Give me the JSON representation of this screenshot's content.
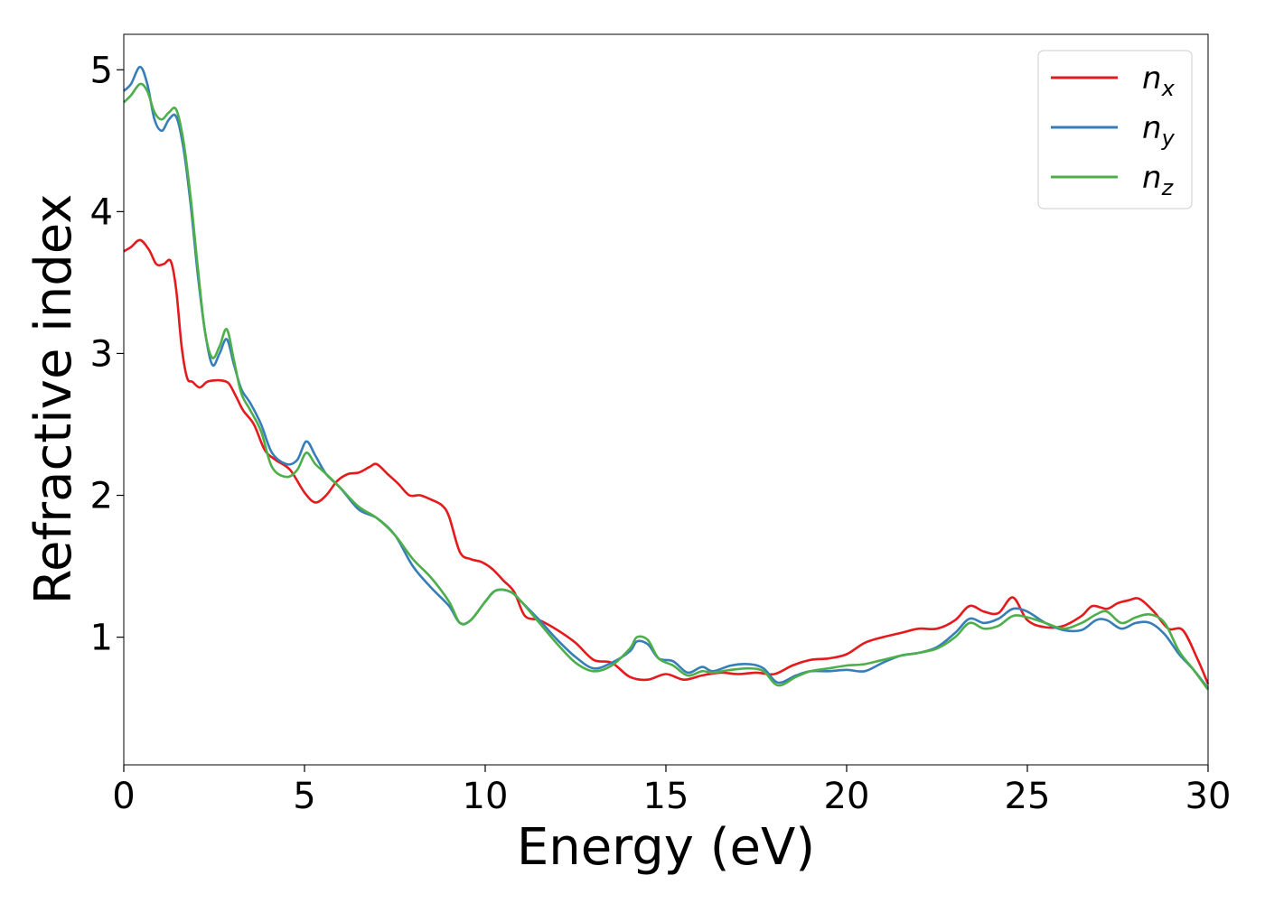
{
  "chart_data": {
    "type": "line",
    "xlabel": "Energy (eV)",
    "ylabel": "Refractive index",
    "xlim": [
      0,
      30
    ],
    "ylim": [
      0.1,
      5.25
    ],
    "xticks": [
      0,
      5,
      10,
      15,
      20,
      25,
      30
    ],
    "yticks": [
      1,
      2,
      3,
      4,
      5
    ],
    "grid": false,
    "legend": "top-right",
    "series": [
      {
        "name": "n",
        "subscript": "x",
        "color": "#e41a1c",
        "x": [
          0,
          0.2,
          0.45,
          0.7,
          0.9,
          1.1,
          1.3,
          1.45,
          1.6,
          1.75,
          1.9,
          2.1,
          2.3,
          2.5,
          2.7,
          2.9,
          3.1,
          3.3,
          3.6,
          3.9,
          4.2,
          4.6,
          5.0,
          5.3,
          5.6,
          5.9,
          6.2,
          6.5,
          6.8,
          7.0,
          7.3,
          7.6,
          7.9,
          8.2,
          8.5,
          8.8,
          9.0,
          9.3,
          9.6,
          9.9,
          10.2,
          10.5,
          10.8,
          11.1,
          11.5,
          12.0,
          12.5,
          13.0,
          13.5,
          14.0,
          14.5,
          15.0,
          15.5,
          16.0,
          16.5,
          17.0,
          17.5,
          18.0,
          18.5,
          19.0,
          19.5,
          20.0,
          20.5,
          21.0,
          21.5,
          22.0,
          22.5,
          23.0,
          23.4,
          23.8,
          24.2,
          24.6,
          25.0,
          25.5,
          26.0,
          26.5,
          26.8,
          27.2,
          27.5,
          27.8,
          28.1,
          28.5,
          28.9,
          29.3,
          29.7,
          30.0
        ],
        "y": [
          3.72,
          3.75,
          3.8,
          3.73,
          3.63,
          3.63,
          3.65,
          3.45,
          3.05,
          2.83,
          2.8,
          2.76,
          2.8,
          2.81,
          2.81,
          2.79,
          2.7,
          2.6,
          2.5,
          2.32,
          2.25,
          2.18,
          2.02,
          1.95,
          2.0,
          2.1,
          2.15,
          2.16,
          2.2,
          2.22,
          2.15,
          2.08,
          2.0,
          2.0,
          1.97,
          1.93,
          1.85,
          1.6,
          1.55,
          1.53,
          1.48,
          1.4,
          1.32,
          1.15,
          1.12,
          1.05,
          0.96,
          0.84,
          0.82,
          0.72,
          0.7,
          0.74,
          0.7,
          0.73,
          0.75,
          0.74,
          0.75,
          0.74,
          0.8,
          0.84,
          0.85,
          0.88,
          0.96,
          1.0,
          1.03,
          1.06,
          1.06,
          1.12,
          1.22,
          1.18,
          1.17,
          1.28,
          1.12,
          1.07,
          1.08,
          1.15,
          1.22,
          1.2,
          1.24,
          1.26,
          1.27,
          1.18,
          1.06,
          1.05,
          0.85,
          0.67
        ]
      },
      {
        "name": "n",
        "subscript": "y",
        "color": "#377eb8",
        "x": [
          0,
          0.2,
          0.45,
          0.65,
          0.85,
          1.05,
          1.25,
          1.45,
          1.65,
          1.85,
          2.05,
          2.25,
          2.45,
          2.65,
          2.85,
          3.05,
          3.25,
          3.5,
          3.8,
          4.1,
          4.5,
          4.8,
          5.05,
          5.3,
          5.6,
          6.0,
          6.5,
          7.0,
          7.5,
          8.0,
          8.5,
          9.0,
          9.3,
          9.6,
          10.0,
          10.3,
          10.7,
          11.0,
          11.5,
          12.0,
          12.5,
          13.0,
          13.5,
          14.0,
          14.2,
          14.5,
          14.8,
          15.2,
          15.6,
          16.0,
          16.3,
          16.8,
          17.3,
          17.7,
          18.1,
          18.6,
          19.0,
          19.5,
          20.0,
          20.5,
          21.0,
          21.5,
          22.0,
          22.5,
          23.0,
          23.4,
          23.8,
          24.2,
          24.6,
          25.0,
          25.5,
          26.0,
          26.5,
          26.9,
          27.2,
          27.6,
          28.0,
          28.4,
          28.8,
          29.2,
          29.6,
          30.0
        ],
        "y": [
          4.85,
          4.9,
          5.02,
          4.9,
          4.65,
          4.57,
          4.65,
          4.67,
          4.45,
          4.05,
          3.55,
          3.15,
          2.92,
          3.0,
          3.1,
          2.92,
          2.75,
          2.65,
          2.5,
          2.3,
          2.22,
          2.25,
          2.38,
          2.28,
          2.15,
          2.05,
          1.9,
          1.84,
          1.72,
          1.5,
          1.35,
          1.22,
          1.1,
          1.12,
          1.25,
          1.33,
          1.32,
          1.25,
          1.12,
          0.98,
          0.86,
          0.78,
          0.82,
          0.9,
          0.97,
          0.95,
          0.85,
          0.83,
          0.75,
          0.79,
          0.76,
          0.8,
          0.81,
          0.78,
          0.68,
          0.73,
          0.76,
          0.76,
          0.77,
          0.76,
          0.82,
          0.87,
          0.89,
          0.93,
          1.03,
          1.13,
          1.1,
          1.13,
          1.2,
          1.18,
          1.1,
          1.05,
          1.05,
          1.12,
          1.12,
          1.06,
          1.1,
          1.1,
          1.02,
          0.88,
          0.77,
          0.64
        ]
      },
      {
        "name": "n",
        "subscript": "z",
        "color": "#4daf4a",
        "x": [
          0,
          0.2,
          0.45,
          0.65,
          0.85,
          1.05,
          1.25,
          1.45,
          1.65,
          1.85,
          2.05,
          2.25,
          2.45,
          2.65,
          2.85,
          3.05,
          3.25,
          3.5,
          3.8,
          4.1,
          4.5,
          4.8,
          5.05,
          5.3,
          5.6,
          6.0,
          6.5,
          7.0,
          7.5,
          8.0,
          8.5,
          9.0,
          9.3,
          9.6,
          10.0,
          10.3,
          10.7,
          11.0,
          11.5,
          12.0,
          12.5,
          13.0,
          13.5,
          14.0,
          14.2,
          14.5,
          14.8,
          15.2,
          15.6,
          16.0,
          16.3,
          16.8,
          17.3,
          17.7,
          18.1,
          18.6,
          19.0,
          19.5,
          20.0,
          20.5,
          21.0,
          21.5,
          22.0,
          22.5,
          23.0,
          23.4,
          23.8,
          24.2,
          24.6,
          25.0,
          25.5,
          26.0,
          26.5,
          26.9,
          27.2,
          27.6,
          28.0,
          28.4,
          28.8,
          29.2,
          29.6,
          30.0
        ],
        "y": [
          4.77,
          4.82,
          4.9,
          4.85,
          4.7,
          4.65,
          4.7,
          4.72,
          4.5,
          4.1,
          3.6,
          3.15,
          2.97,
          3.05,
          3.17,
          2.95,
          2.72,
          2.6,
          2.45,
          2.2,
          2.13,
          2.18,
          2.3,
          2.22,
          2.15,
          2.05,
          1.92,
          1.84,
          1.72,
          1.55,
          1.42,
          1.25,
          1.1,
          1.12,
          1.25,
          1.33,
          1.32,
          1.25,
          1.1,
          0.95,
          0.82,
          0.76,
          0.8,
          0.92,
          1.0,
          0.98,
          0.85,
          0.8,
          0.73,
          0.76,
          0.75,
          0.77,
          0.78,
          0.76,
          0.66,
          0.72,
          0.76,
          0.78,
          0.8,
          0.81,
          0.84,
          0.87,
          0.89,
          0.92,
          1.0,
          1.1,
          1.06,
          1.08,
          1.15,
          1.14,
          1.1,
          1.06,
          1.1,
          1.16,
          1.18,
          1.1,
          1.14,
          1.16,
          1.1,
          0.9,
          0.77,
          0.63
        ]
      }
    ]
  }
}
